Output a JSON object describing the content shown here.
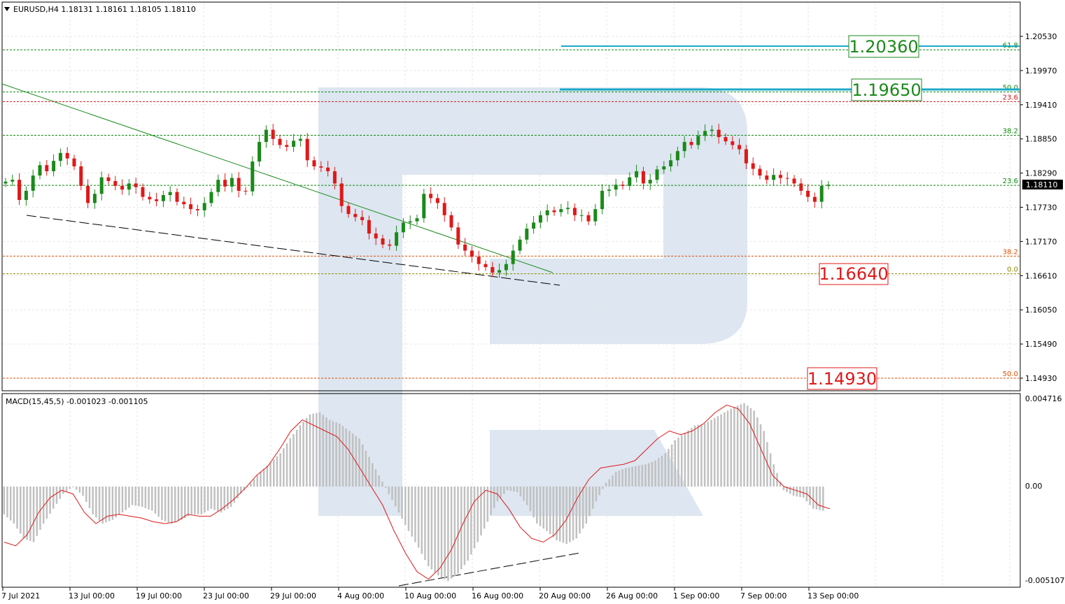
{
  "header": {
    "symbol_line": "EURUSD,H4  1.18131 1.18161 1.18105 1.18110"
  },
  "price_axis": {
    "ticks": [
      "1.20530",
      "1.19970",
      "1.19410",
      "1.18850",
      "1.18290",
      "1.17730",
      "1.17170",
      "1.16610",
      "1.16050",
      "1.15490",
      "1.14930"
    ],
    "current_price": "1.18110"
  },
  "macd": {
    "label": "MACD(15,45,5) -0.001023 -0.001105",
    "ticks": [
      "0.004716",
      "0.00",
      "-0.005107"
    ]
  },
  "time_axis": [
    "7 Jul 2021",
    "13 Jul 00:00",
    "19 Jul 00:00",
    "23 Jul 00:00",
    "29 Jul 00:00",
    "4 Aug 00:00",
    "10 Aug 00:00",
    "16 Aug 00:00",
    "20 Aug 00:00",
    "26 Aug 00:00",
    "1 Sep 00:00",
    "7 Sep 00:00",
    "13 Sep 00:00"
  ],
  "fib_levels": [
    {
      "label": "61.8",
      "price": 1.2031,
      "color": "#0a8a0a"
    },
    {
      "label": "50.0",
      "price": 1.1962,
      "color": "#0a8a0a"
    },
    {
      "label": "23.6",
      "price": 1.1946,
      "color": "#d01818"
    },
    {
      "label": "38.2",
      "price": 1.1891,
      "color": "#0a8a0a"
    },
    {
      "label": "23.6",
      "price": 1.1809,
      "color": "#0a8a0a"
    },
    {
      "label": "38.2",
      "price": 1.1693,
      "color": "#e05000"
    },
    {
      "label": "0.0",
      "price": 1.1664,
      "color": "#8a8a00"
    },
    {
      "label": "50.0",
      "price": 1.1493,
      "color": "#e05000"
    }
  ],
  "targets": [
    {
      "label": "1.20360",
      "color": "#1a8a1a"
    },
    {
      "label": "1.19650",
      "color": "#1a8a1a"
    },
    {
      "label": "1.16640",
      "color": "#e01818"
    },
    {
      "label": "1.14930",
      "color": "#e01818"
    }
  ],
  "colors": {
    "bull": "#1a8a1a",
    "bear": "#e01818",
    "macd_hist": "#c0c0c0",
    "signal": "#e01818",
    "grid": "#e6e6e6",
    "watermark": "#dde6f1"
  },
  "chart_data": {
    "type": "candlestick",
    "series_price_close": [
      1.1815,
      1.1818,
      1.1785,
      1.18,
      1.1825,
      1.1842,
      1.1832,
      1.1849,
      1.1862,
      1.1853,
      1.184,
      1.1808,
      1.178,
      1.1795,
      1.1822,
      1.1816,
      1.1808,
      1.1802,
      1.1812,
      1.1806,
      1.179,
      1.1786,
      1.1783,
      1.1793,
      1.1798,
      1.1782,
      1.1778,
      1.177,
      1.1768,
      1.178,
      1.1798,
      1.1818,
      1.1807,
      1.1821,
      1.18,
      1.1799,
      1.1848,
      1.188,
      1.19,
      1.1885,
      1.1875,
      1.1872,
      1.1882,
      1.1885,
      1.185,
      1.184,
      1.1838,
      1.1832,
      1.1812,
      1.1775,
      1.1762,
      1.1757,
      1.1752,
      1.173,
      1.1722,
      1.1712,
      1.171,
      1.1732,
      1.1748,
      1.175,
      1.1755,
      1.1795,
      1.1788,
      1.178,
      1.176,
      1.174,
      1.1712,
      1.1702,
      1.1692,
      1.168,
      1.1675,
      1.1666,
      1.167,
      1.168,
      1.1702,
      1.172,
      1.1738,
      1.1748,
      1.176,
      1.1768,
      1.1765,
      1.177,
      1.1772,
      1.176,
      1.176,
      1.175,
      1.177,
      1.18,
      1.1802,
      1.181,
      1.1808,
      1.1822,
      1.1832,
      1.1812,
      1.1818,
      1.1835,
      1.184,
      1.185,
      1.1865,
      1.188,
      1.1875,
      1.189,
      1.1898,
      1.19,
      1.1888,
      1.1881,
      1.1875,
      1.1868,
      1.1845,
      1.1836,
      1.1825,
      1.1818,
      1.1826,
      1.1821,
      1.182,
      1.1812,
      1.18,
      1.179,
      1.1782,
      1.1808,
      1.181
    ],
    "series_macd_hist": [
      -0.0015,
      -0.002,
      -0.0028,
      -0.003,
      -0.002,
      -0.0012,
      -0.0004,
      0.0,
      -0.0005,
      -0.0015,
      -0.002,
      -0.0018,
      -0.0014,
      -0.001,
      -0.0011,
      -0.0013,
      -0.0018,
      -0.002,
      -0.0018,
      -0.0015,
      -0.0015,
      -0.0012,
      -0.0014,
      -0.0011,
      -0.0004,
      0.0002,
      0.0008,
      0.0013,
      0.0018,
      0.0026,
      0.0033,
      0.0039,
      0.004,
      0.0036,
      0.0034,
      0.003,
      0.0026,
      0.0016,
      0.0006,
      -0.0004,
      -0.0014,
      -0.0024,
      -0.0033,
      -0.0043,
      -0.0048,
      -0.0051,
      -0.0047,
      -0.004,
      -0.003,
      -0.0019,
      -0.0008,
      -0.0002,
      -0.0003,
      -0.001,
      -0.002,
      -0.0024,
      -0.0029,
      -0.0031,
      -0.0028,
      -0.002,
      -0.0008,
      0.0002,
      0.0008,
      0.001,
      0.0011,
      0.0012,
      0.0014,
      0.0018,
      0.0025,
      0.0029,
      0.0033,
      0.0034,
      0.0037,
      0.004,
      0.0043,
      0.0045,
      0.0041,
      0.003,
      0.0012,
      -0.0002,
      -0.0005,
      -0.0006,
      -0.0012,
      -0.0013
    ],
    "series_macd_signal": [
      -0.003,
      -0.0032,
      -0.0026,
      -0.0014,
      -0.0006,
      -0.0002,
      -0.0004,
      -0.0014,
      -0.002,
      -0.0016,
      -0.0015,
      -0.0016,
      -0.0017,
      -0.0019,
      -0.002,
      -0.0019,
      -0.0015,
      -0.0016,
      -0.0016,
      -0.0012,
      -0.0007,
      -0.0001,
      0.0006,
      0.0011,
      0.002,
      0.003,
      0.0036,
      0.0033,
      0.003,
      0.0027,
      0.002,
      0.001,
      0.0,
      -0.001,
      -0.0024,
      -0.0036,
      -0.0046,
      -0.005,
      -0.0044,
      -0.0034,
      -0.002,
      -0.0008,
      -0.0002,
      -0.0004,
      -0.0012,
      -0.0022,
      -0.0028,
      -0.003,
      -0.0026,
      -0.0018,
      -0.0006,
      0.0004,
      0.001,
      0.0011,
      0.0012,
      0.0014,
      0.002,
      0.0026,
      0.003,
      0.0028,
      0.003,
      0.0034,
      0.004,
      0.0044,
      0.0042,
      0.0034,
      0.002,
      0.0006,
      0.0,
      -0.0002,
      -0.0004,
      -0.001,
      -0.0012
    ],
    "ylim_price": [
      1.1488,
      1.207
    ],
    "ylim_macd": [
      -0.0055,
      0.005
    ]
  }
}
